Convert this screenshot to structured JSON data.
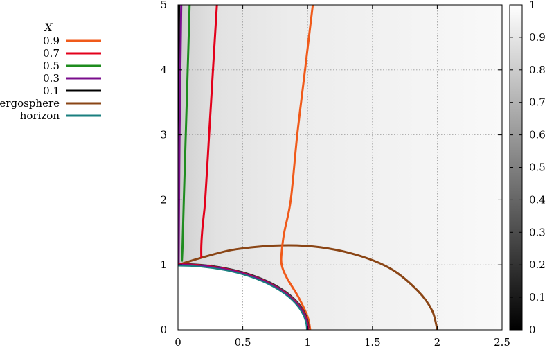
{
  "chart_data": {
    "type": "line",
    "title": "",
    "xlabel": "",
    "ylabel": "",
    "xlim": [
      0,
      2.5
    ],
    "ylim": [
      0,
      5
    ],
    "grid": true,
    "legend_placement": "left-outside",
    "legend_title": "X",
    "x_ticks": [
      "0",
      "0.5",
      "1",
      "1.5",
      "2",
      "2.5"
    ],
    "y_ticks": [
      "0",
      "1",
      "2",
      "3",
      "4",
      "5"
    ],
    "colorbar": {
      "range": [
        0,
        1
      ],
      "ticks": [
        "0",
        "0.1",
        "0.2",
        "0.3",
        "0.4",
        "0.5",
        "0.6",
        "0.7",
        "0.8",
        "0.9",
        "1"
      ],
      "colormap": "grayscale"
    },
    "series": [
      {
        "name": "0.9",
        "color": "#f05a1a",
        "points": [
          [
            1.02,
            0
          ],
          [
            1.0,
            0.2
          ],
          [
            0.93,
            0.5
          ],
          [
            0.84,
            0.8
          ],
          [
            0.8,
            1.0
          ],
          [
            0.8,
            1.2
          ],
          [
            0.82,
            1.5
          ],
          [
            0.87,
            2.0
          ],
          [
            0.92,
            3.0
          ],
          [
            0.98,
            4.0
          ],
          [
            1.04,
            5.0
          ]
        ]
      },
      {
        "name": "0.7",
        "color": "#e3001b",
        "points": [
          [
            0.18,
            1.1
          ],
          [
            0.18,
            1.3
          ],
          [
            0.19,
            1.6
          ],
          [
            0.21,
            2.0
          ],
          [
            0.24,
            3.0
          ],
          [
            0.27,
            4.0
          ],
          [
            0.3,
            5.0
          ]
        ]
      },
      {
        "name": "0.5",
        "color": "#1e8c1e",
        "points": [
          [
            0.03,
            1.05
          ],
          [
            0.035,
            1.3
          ],
          [
            0.045,
            2.0
          ],
          [
            0.06,
            3.0
          ],
          [
            0.075,
            4.0
          ],
          [
            0.09,
            5.0
          ]
        ]
      },
      {
        "name": "0.3",
        "color": "#7a0d8c",
        "points": [
          [
            0.005,
            1.0
          ],
          [
            0.008,
            2.0
          ],
          [
            0.012,
            3.0
          ],
          [
            0.018,
            4.0
          ],
          [
            0.025,
            5.0
          ]
        ]
      },
      {
        "name": "0.1",
        "color": "#000000",
        "points": [
          [
            0.0,
            1.0
          ],
          [
            0.002,
            2.0
          ],
          [
            0.004,
            3.0
          ],
          [
            0.006,
            4.0
          ],
          [
            0.008,
            5.0
          ]
        ]
      },
      {
        "name": "ergosphere",
        "color": "#8a4515",
        "shape": "ergosphere"
      },
      {
        "name": "horizon",
        "color": "#1a7f7f",
        "shape": "horizon"
      }
    ]
  }
}
